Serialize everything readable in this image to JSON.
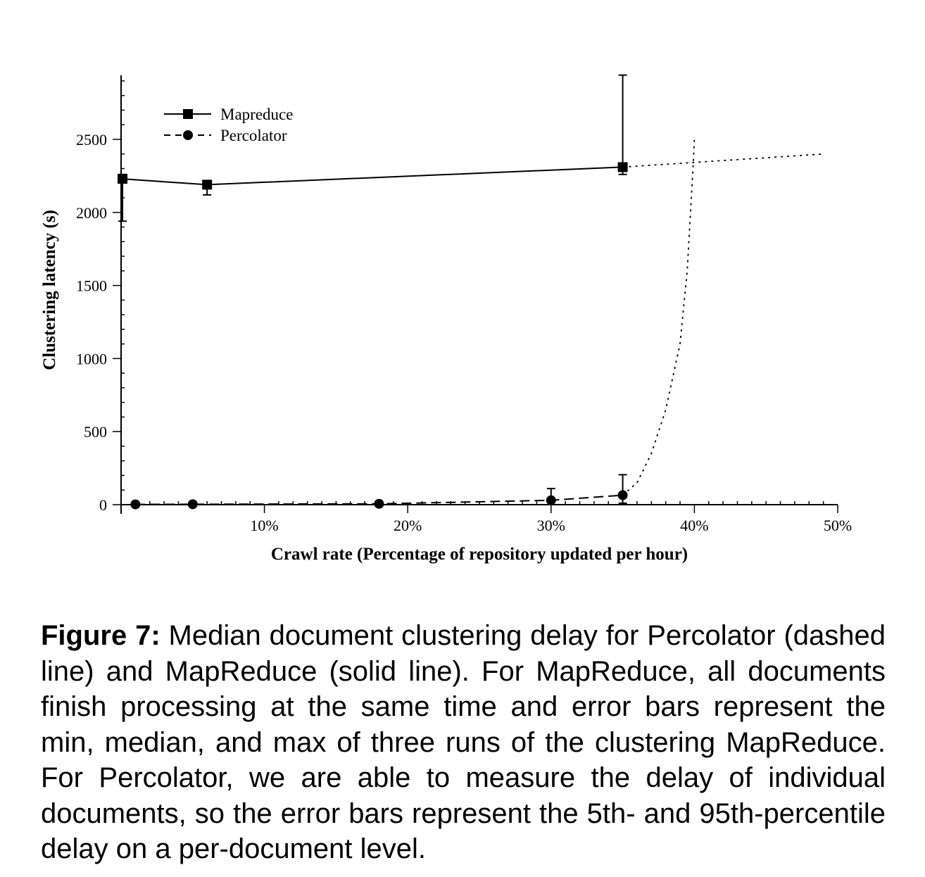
{
  "chart_data": {
    "type": "line",
    "xlabel": "Crawl rate (Percentage of repository updated per hour)",
    "ylabel": "Clustering latency (s)",
    "xlim": [
      0,
      50
    ],
    "ylim": [
      0,
      2500
    ],
    "x_ticks": [
      {
        "value": 10,
        "label": "10%"
      },
      {
        "value": 20,
        "label": "20%"
      },
      {
        "value": 30,
        "label": "30%"
      },
      {
        "value": 40,
        "label": "40%"
      },
      {
        "value": 50,
        "label": "50%"
      }
    ],
    "y_ticks": [
      {
        "value": 0,
        "label": "0"
      },
      {
        "value": 500,
        "label": "500"
      },
      {
        "value": 1000,
        "label": "1000"
      },
      {
        "value": 1500,
        "label": "1500"
      },
      {
        "value": 2000,
        "label": "2000"
      },
      {
        "value": 2500,
        "label": "2500"
      }
    ],
    "grid": false,
    "legend_position": "top-left",
    "series": [
      {
        "name": "Mapreduce",
        "marker": "square",
        "line_style": "solid",
        "points": [
          {
            "x": 0.1,
            "y": 2230,
            "err_low": 1940,
            "err_high": 2260
          },
          {
            "x": 6,
            "y": 2190,
            "err_low": 2120,
            "err_high": 2200
          },
          {
            "x": 35,
            "y": 2310,
            "err_low": 2260,
            "err_high": 2940
          }
        ],
        "extrapolation": [
          [
            35,
            2310
          ],
          [
            49,
            2400
          ]
        ]
      },
      {
        "name": "Percolator",
        "marker": "circle",
        "line_style": "dashed",
        "points": [
          {
            "x": 1,
            "y": 2,
            "err_low": 0,
            "err_high": 2
          },
          {
            "x": 5,
            "y": 3,
            "err_low": 0,
            "err_high": 3
          },
          {
            "x": 18,
            "y": 6,
            "err_low": 0,
            "err_high": 6
          },
          {
            "x": 30,
            "y": 30,
            "err_low": 0,
            "err_high": 110
          },
          {
            "x": 35,
            "y": 65,
            "err_low": 10,
            "err_high": 205
          }
        ],
        "extrapolation": [
          [
            35,
            65
          ],
          [
            36,
            150
          ],
          [
            37,
            350
          ],
          [
            38,
            650
          ],
          [
            39,
            1100
          ],
          [
            39.5,
            1600
          ],
          [
            39.9,
            2300
          ],
          [
            40,
            2500
          ]
        ]
      }
    ]
  },
  "caption": {
    "label": "Figure 7:",
    "text": "Median document clustering delay for Percolator (dashed line) and MapReduce (solid line). For MapReduce, all documents finish processing at the same time and error bars represent the min, median, and max of three runs of the clustering MapReduce. For Percolator, we are able to measure the delay of individual documents, so the error bars represent the 5th- and 95th-percentile delay on a per-document level."
  }
}
